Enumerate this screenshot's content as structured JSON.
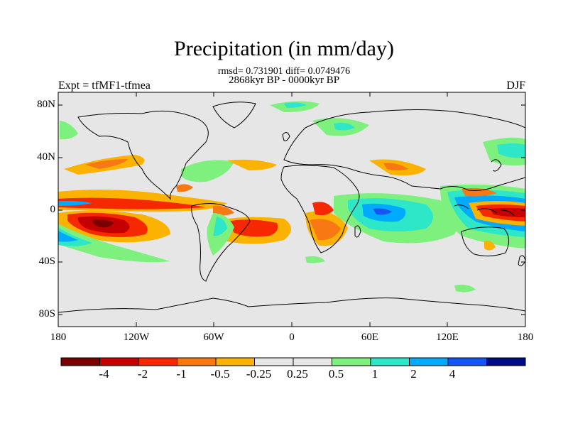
{
  "title": "Precipitation (in mm/day)",
  "subtitle_stats": "rmsd= 0.731901 diff= 0.0749476",
  "subtitle_period": "2868kyr BP - 0000kyr BP",
  "left_label": "Expt = tfMF1-tfmea",
  "right_label": "DJF",
  "lat_labels": [
    "80N",
    "40N",
    "0",
    "40S",
    "80S"
  ],
  "lon_labels": [
    "180",
    "120W",
    "60W",
    "0",
    "60E",
    "120E",
    "180"
  ],
  "colorbar": {
    "colors": [
      "#7a0000",
      "#c40000",
      "#f52800",
      "#f87814",
      "#fbb200",
      "#e6e6e6",
      "#e6e6e6",
      "#7ef07e",
      "#2ee6c8",
      "#00aaff",
      "#1455f5",
      "#000a82"
    ],
    "labels": [
      "-4",
      "-2",
      "-1",
      "-0.5",
      "-0.25",
      "0.25",
      "0.5",
      "1",
      "2",
      "4"
    ]
  },
  "map_colors": {
    "land_ocean_background": "#e6e6e6",
    "coastline": "#000000"
  }
}
